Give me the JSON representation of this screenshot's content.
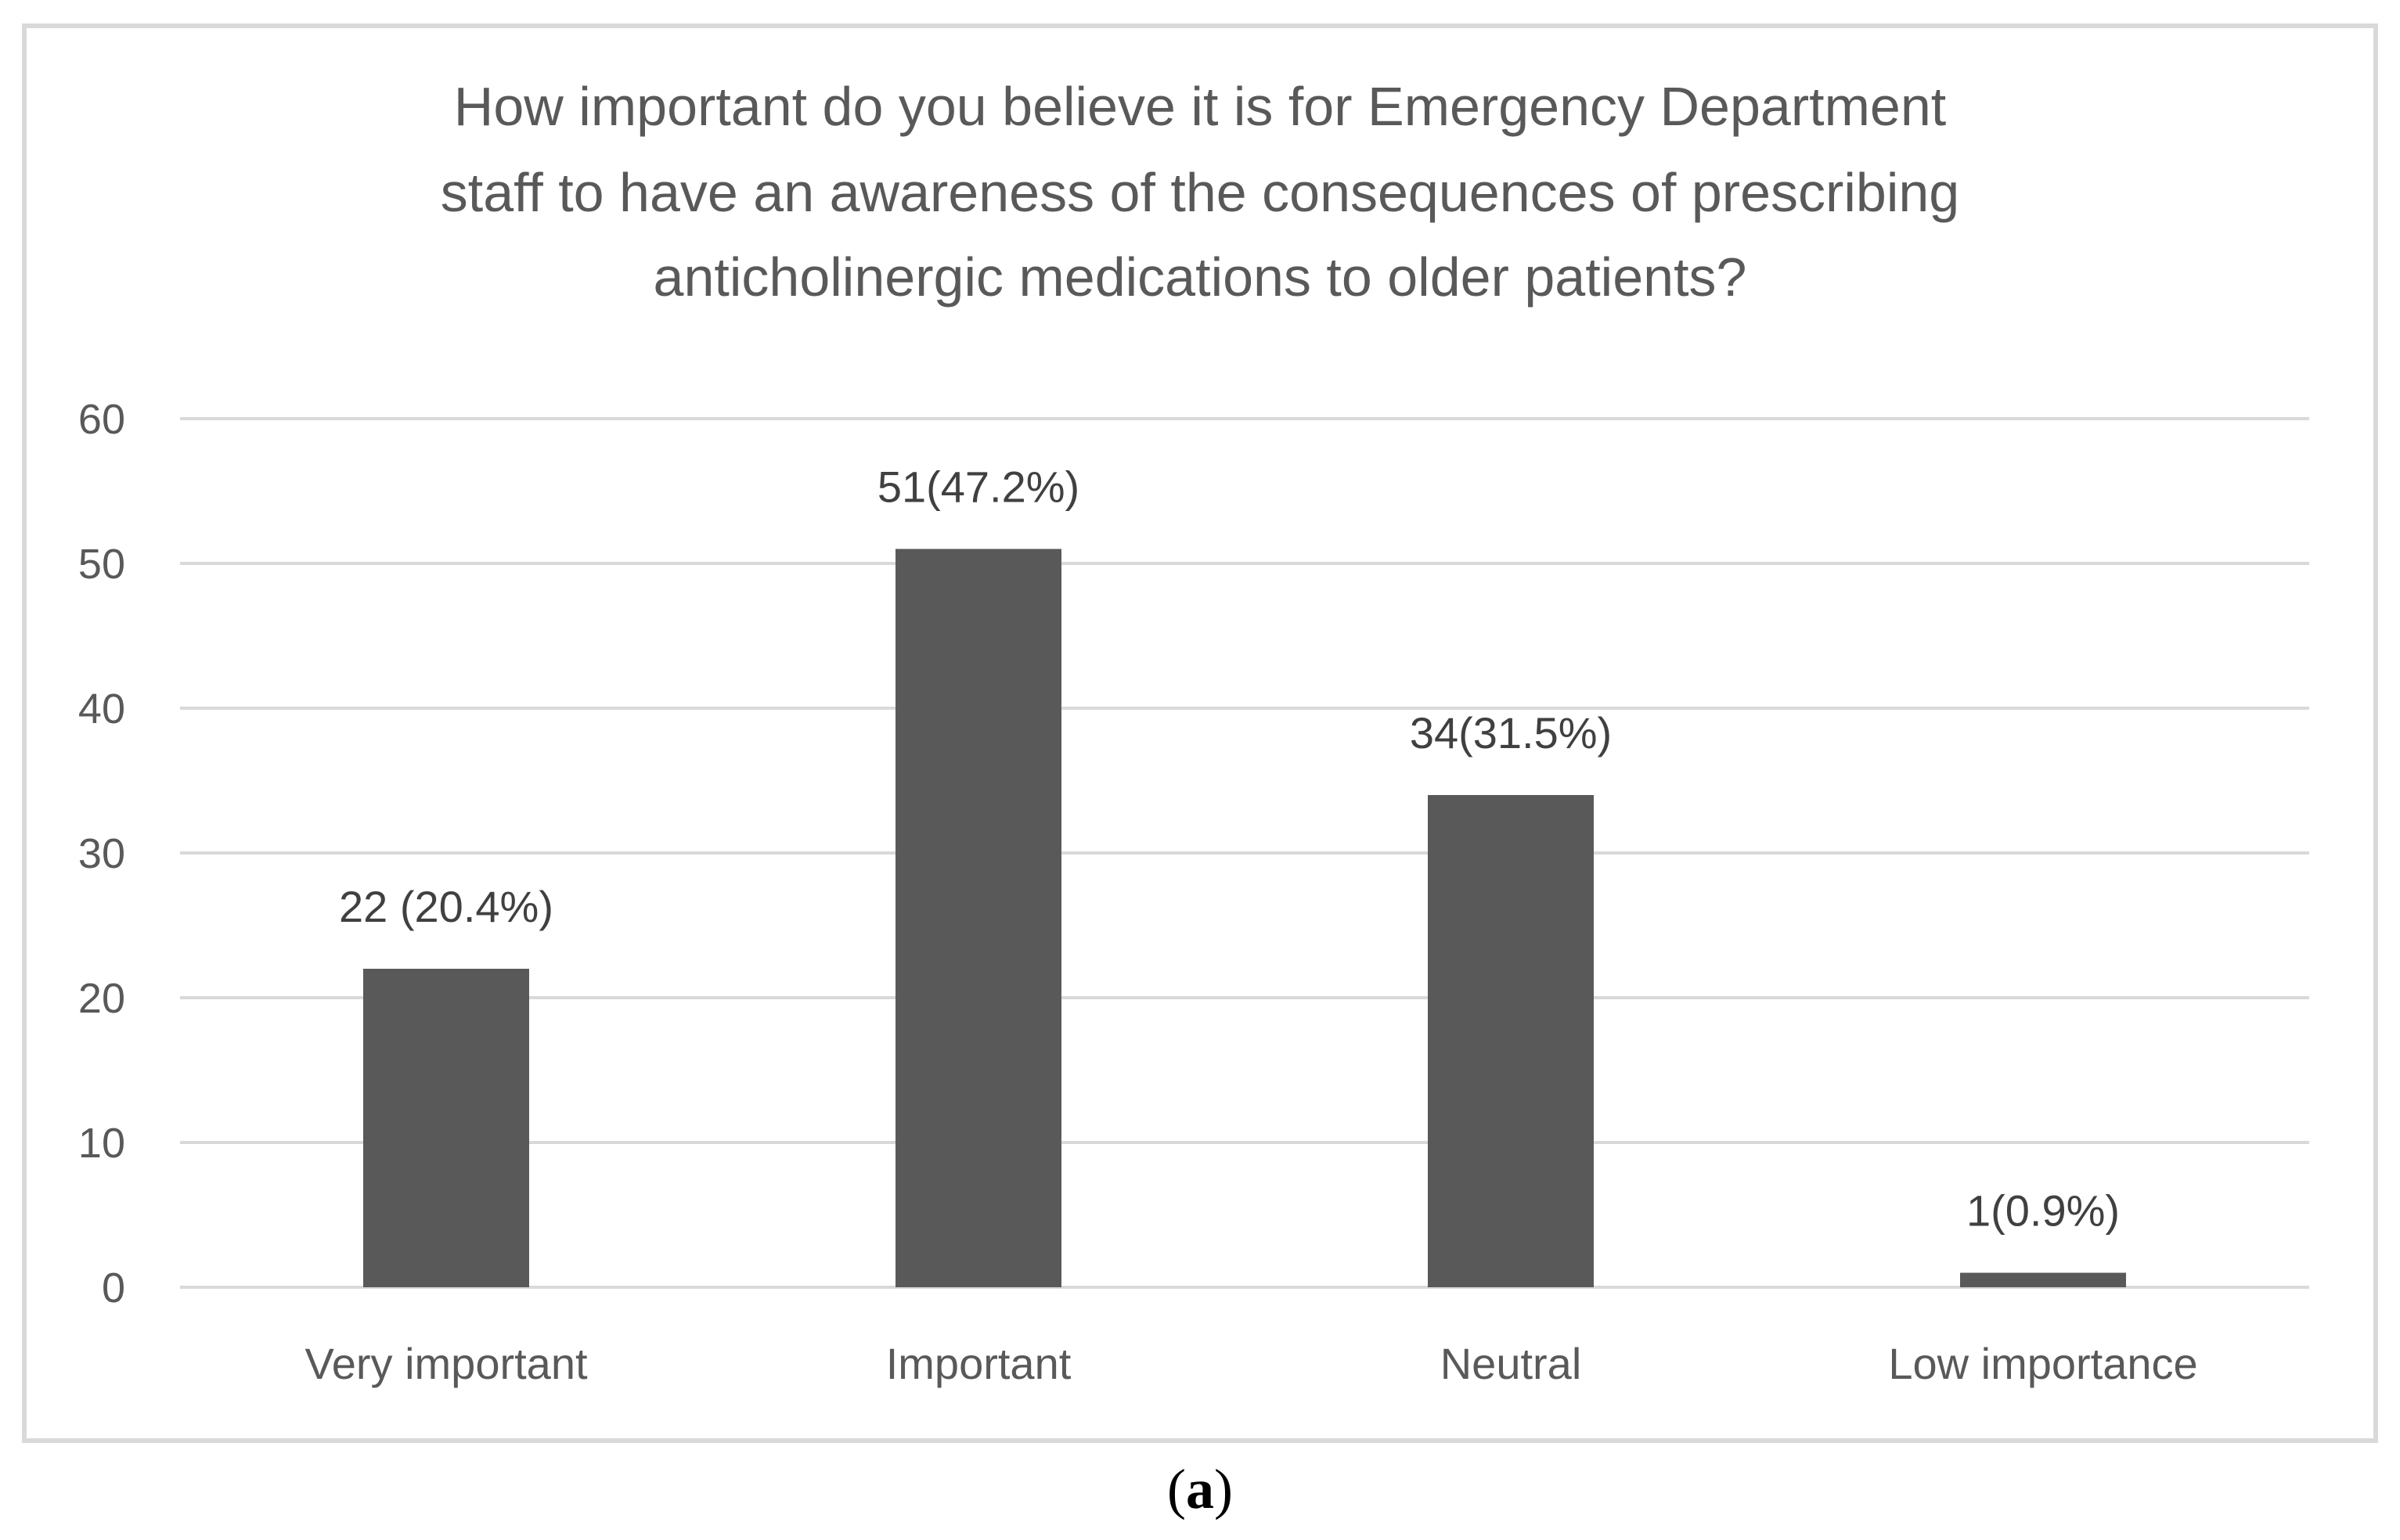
{
  "chart_data": {
    "type": "bar",
    "title_lines": [
      "How important do you believe it is for Emergency Department",
      "staff to have an awareness of the consequences of prescribing",
      "anticholinergic medications to older patients?"
    ],
    "categories": [
      "Very important",
      "Important",
      "Neutral",
      "Low importance"
    ],
    "values": [
      22,
      51,
      34,
      1
    ],
    "data_labels": [
      "22 (20.4%)",
      "51(47.2%)",
      "34(31.5%)",
      "1(0.9%)"
    ],
    "yticks": [
      0,
      10,
      20,
      30,
      40,
      50,
      60
    ],
    "ylim": [
      0,
      60
    ],
    "xlabel": "",
    "ylabel": "",
    "grid": true,
    "legend": "none",
    "bar_color": "#595959",
    "grid_color": "#d9d9d9"
  },
  "caption": {
    "open": "(",
    "letter": "a",
    "close": ")"
  }
}
